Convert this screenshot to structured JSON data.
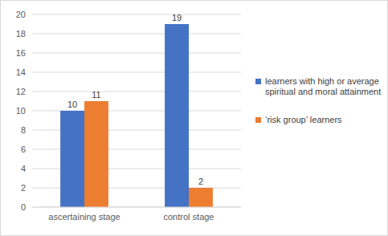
{
  "chart_data": {
    "type": "bar",
    "categories": [
      "ascertaining stage",
      "control stage"
    ],
    "series": [
      {
        "name": "learners with high or average spiritual and moral attainment",
        "color": "#4472c4",
        "values": [
          10,
          19
        ]
      },
      {
        "name": "‘risk group’ learners",
        "color": "#ed7d31",
        "values": [
          11,
          2
        ]
      }
    ],
    "ylim": [
      0,
      20
    ],
    "yticks": [
      0,
      2,
      4,
      6,
      8,
      10,
      12,
      14,
      16,
      18,
      20
    ],
    "grid": true,
    "legend": "right",
    "data_labels": true
  }
}
